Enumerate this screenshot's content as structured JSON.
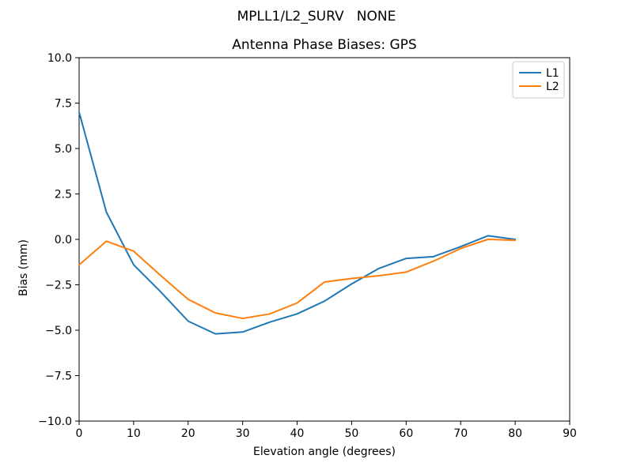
{
  "chart_data": {
    "type": "line",
    "suptitle": "MPLL1/L2_SURV   NONE",
    "title": "Antenna Phase Biases: GPS",
    "xlabel": "Elevation angle (degrees)",
    "ylabel": "Bias (mm)",
    "xlim": [
      0,
      90
    ],
    "ylim": [
      -10,
      10
    ],
    "grid": false,
    "background_color": "#ffffff",
    "axis_color": "#000000",
    "xticks": [
      0,
      10,
      20,
      30,
      40,
      50,
      60,
      70,
      80,
      90
    ],
    "xtick_labels": [
      "0",
      "10",
      "20",
      "30",
      "40",
      "50",
      "60",
      "70",
      "80",
      "90"
    ],
    "yticks": [
      10.0,
      7.5,
      5.0,
      2.5,
      0.0,
      -2.5,
      -5.0,
      -7.5,
      -10.0
    ],
    "ytick_labels": [
      "10.0",
      "7.5",
      "5.0",
      "2.5",
      "0.0",
      "−2.5",
      "−5.0",
      "−7.5",
      "−10.0"
    ],
    "x": [
      0,
      5,
      10,
      15,
      20,
      25,
      30,
      35,
      40,
      45,
      50,
      55,
      60,
      65,
      70,
      75,
      80
    ],
    "series": [
      {
        "name": "L1",
        "color": "#1f77b4",
        "values": [
          7.0,
          1.5,
          -1.4,
          -2.9,
          -4.5,
          -5.2,
          -5.1,
          -4.55,
          -4.1,
          -3.4,
          -2.45,
          -1.6,
          -1.05,
          -0.95,
          -0.4,
          0.2,
          0.0
        ]
      },
      {
        "name": "L2",
        "color": "#ff7f0e",
        "values": [
          -1.4,
          -0.1,
          -0.65,
          -2.0,
          -3.3,
          -4.05,
          -4.35,
          -4.1,
          -3.5,
          -2.35,
          -2.15,
          -2.0,
          -1.8,
          -1.2,
          -0.5,
          0.0,
          -0.05
        ]
      }
    ],
    "legend": {
      "position": "upper right",
      "entries": [
        "L1",
        "L2"
      ]
    }
  }
}
